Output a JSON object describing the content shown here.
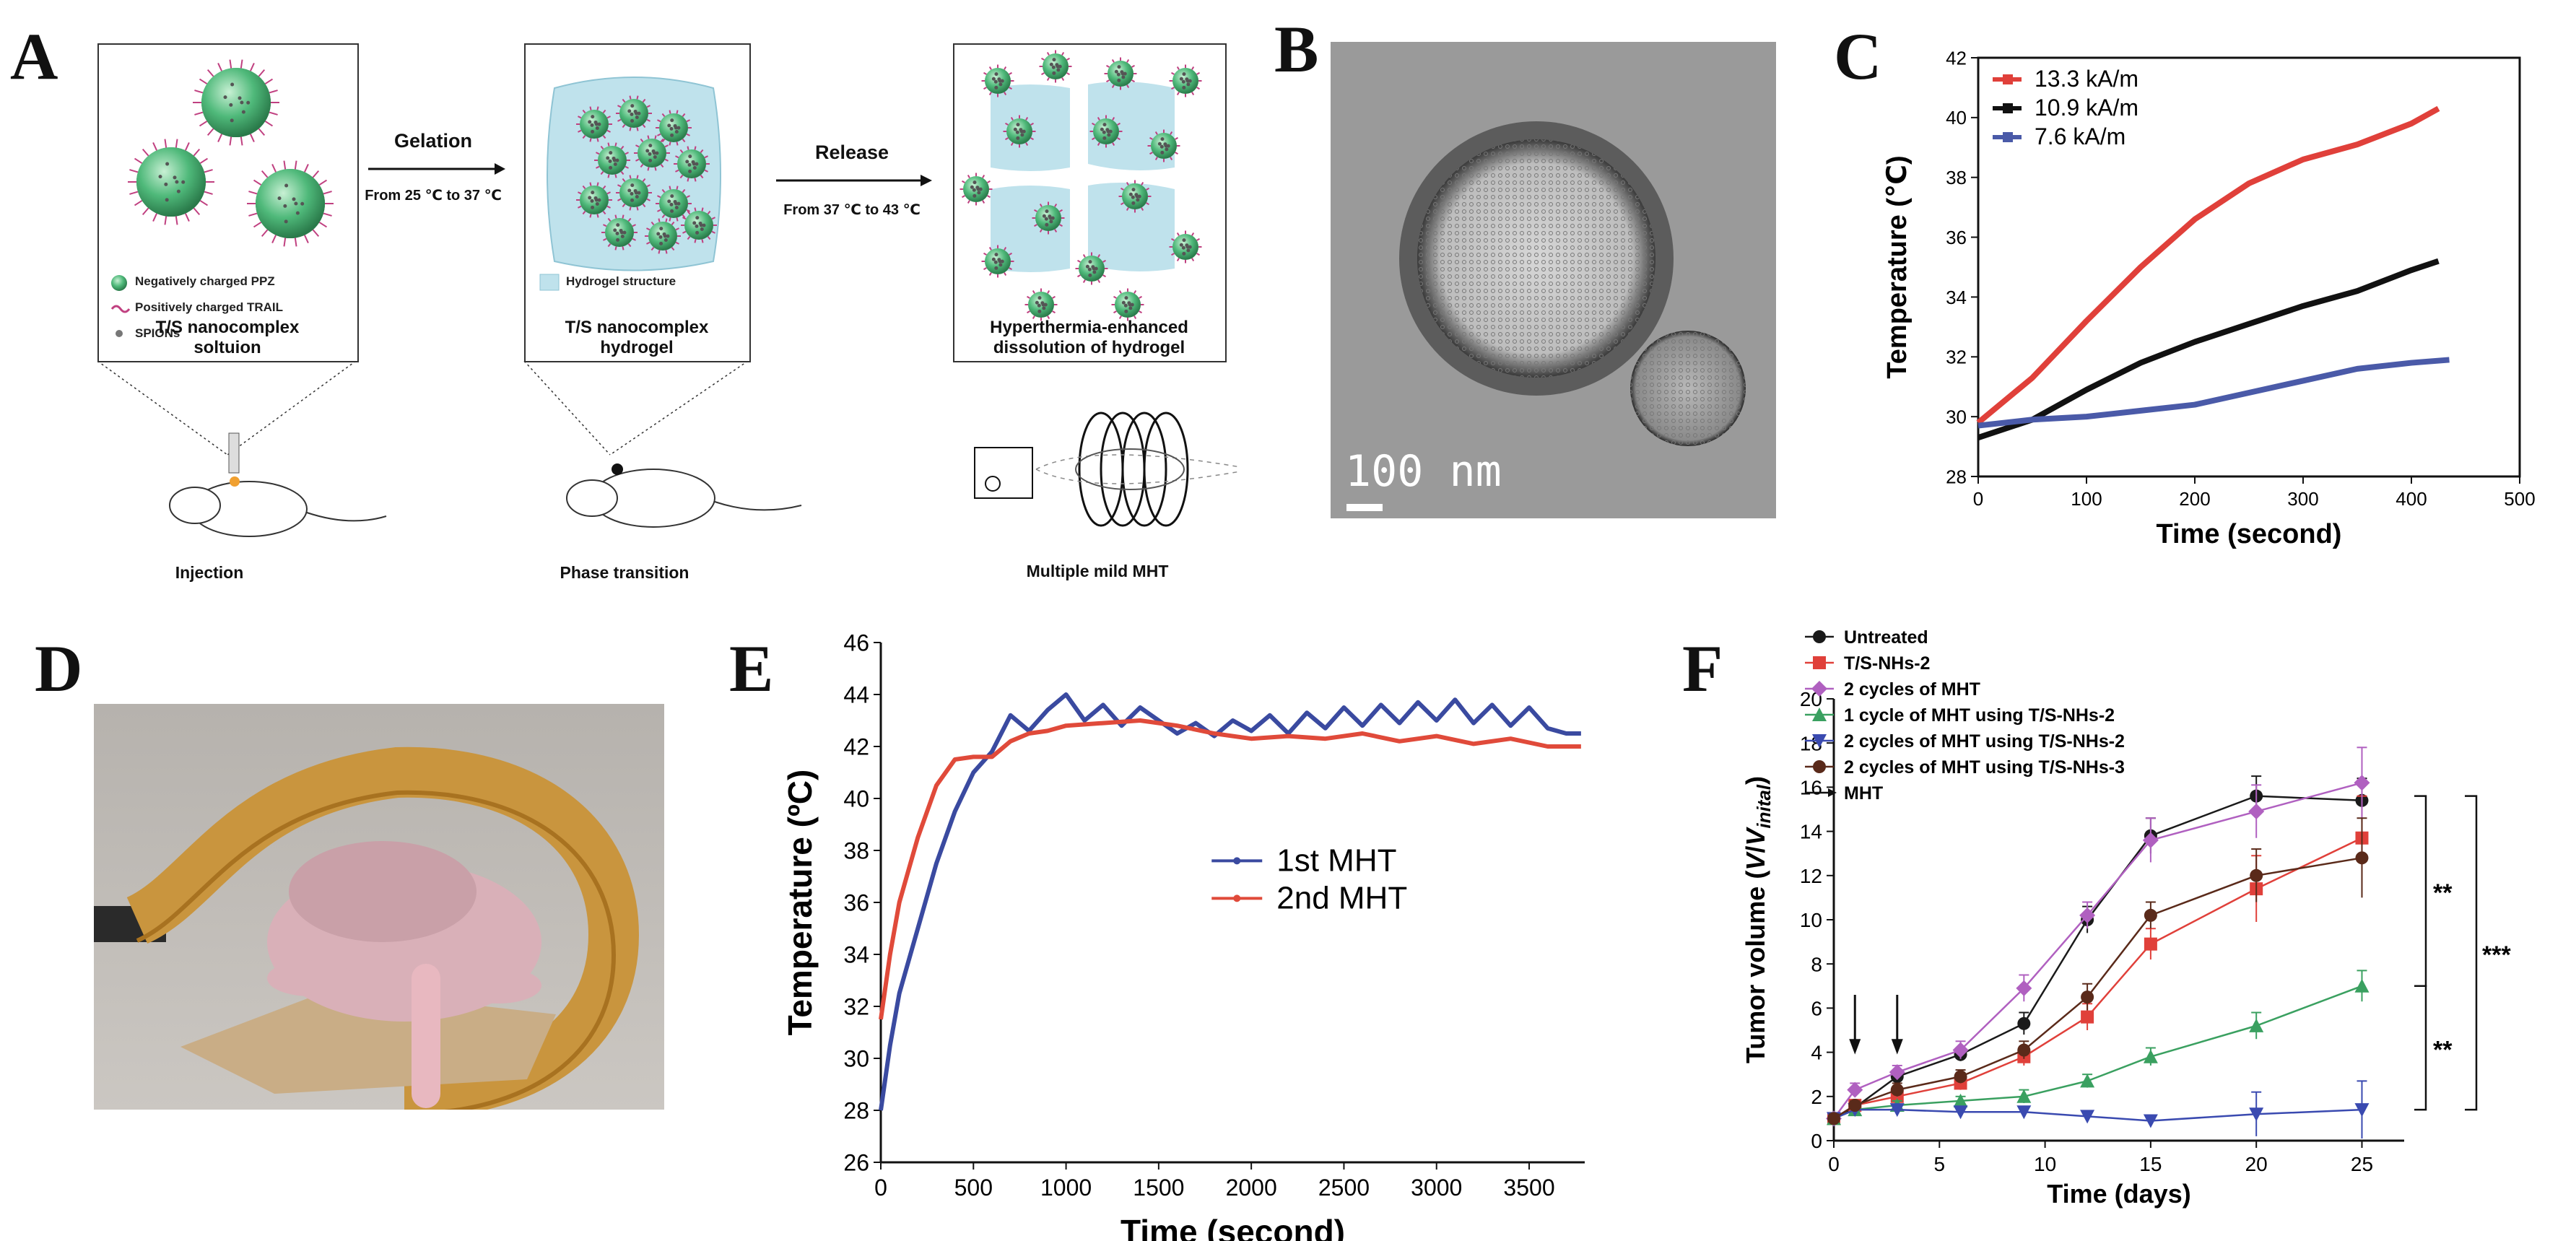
{
  "panels": {
    "A": {
      "letter": "A",
      "legend": {
        "ppz": "Negatively charged PPZ",
        "trail": "Positively charged TRAIL",
        "spions": "SPIONs"
      },
      "box1_title": "T/S nanocomplex\nsoltuion",
      "box2_note": "Hydrogel structure",
      "box2_title": "T/S nanocomplex\nhydrogel",
      "box3_title": "Hyperthermia-enhanced\ndissolution of hydrogel",
      "arrow1_label": "Gelation",
      "arrow1_sub": "From 25 ℃ to 37 ℃",
      "arrow2_label": "Release",
      "arrow2_sub": "From 37 ℃ to 43 ℃",
      "step1": "Injection",
      "step2": "Phase transition",
      "step3": "Multiple mild MHT",
      "colors": {
        "particle": "#3aa86a",
        "gel": "#b8dde8",
        "trail": "#c04080"
      }
    },
    "B": {
      "letter": "B",
      "scale_label": "100 nm"
    },
    "C": {
      "letter": "C"
    },
    "D": {
      "letter": "D"
    },
    "E": {
      "letter": "E"
    },
    "F": {
      "letter": "F",
      "sig_top": "**",
      "sig_bottom": "**",
      "sig_all": "***",
      "arrow_legend": "MHT"
    }
  },
  "chart_data": [
    {
      "id": "C",
      "type": "line",
      "title": "",
      "xlabel": "Time (second)",
      "ylabel": "Temperature (℃)",
      "xlim": [
        0,
        500
      ],
      "ylim": [
        28,
        42
      ],
      "xticks": [
        0,
        100,
        200,
        300,
        400,
        500
      ],
      "yticks": [
        28,
        30,
        32,
        34,
        36,
        38,
        40,
        42
      ],
      "legend_position": "top-left",
      "series": [
        {
          "name": "13.3 kA/m",
          "color": "#e0403a",
          "x": [
            0,
            50,
            100,
            150,
            200,
            250,
            300,
            350,
            400,
            425
          ],
          "y": [
            29.8,
            31.3,
            33.2,
            35.0,
            36.6,
            37.8,
            38.6,
            39.1,
            39.8,
            40.3
          ]
        },
        {
          "name": "10.9 kA/m",
          "color": "#111111",
          "x": [
            0,
            50,
            100,
            150,
            200,
            250,
            300,
            350,
            400,
            425
          ],
          "y": [
            29.3,
            29.9,
            30.9,
            31.8,
            32.5,
            33.1,
            33.7,
            34.2,
            34.9,
            35.2
          ]
        },
        {
          "name": "7.6 kA/m",
          "color": "#4a5aa8",
          "x": [
            0,
            50,
            100,
            150,
            200,
            250,
            300,
            350,
            400,
            435
          ],
          "y": [
            29.7,
            29.9,
            30.0,
            30.2,
            30.4,
            30.8,
            31.2,
            31.6,
            31.8,
            31.9
          ]
        }
      ]
    },
    {
      "id": "E",
      "type": "line",
      "title": "",
      "xlabel": "Time (second)",
      "ylabel": "Temperature (ºC)",
      "xlim": [
        0,
        3800
      ],
      "ylim": [
        26,
        46
      ],
      "xticks": [
        0,
        500,
        1000,
        1500,
        2000,
        2500,
        3000,
        3500
      ],
      "yticks": [
        26,
        28,
        30,
        32,
        34,
        36,
        38,
        40,
        42,
        44,
        46
      ],
      "legend_position": "center-right",
      "series": [
        {
          "name": "1st MHT",
          "color": "#3a4aa0",
          "x": [
            0,
            50,
            100,
            200,
            300,
            400,
            500,
            600,
            700,
            800,
            900,
            1000,
            1100,
            1200,
            1300,
            1400,
            1500,
            1600,
            1700,
            1800,
            1900,
            2000,
            2100,
            2200,
            2300,
            2400,
            2500,
            2600,
            2700,
            2800,
            2900,
            3000,
            3100,
            3200,
            3300,
            3400,
            3500,
            3600,
            3700,
            3780
          ],
          "y": [
            28.0,
            30.5,
            32.5,
            35.0,
            37.5,
            39.5,
            41.0,
            41.8,
            43.2,
            42.6,
            43.4,
            44.0,
            43.0,
            43.6,
            42.8,
            43.5,
            43.0,
            42.5,
            42.9,
            42.4,
            43.0,
            42.6,
            43.2,
            42.5,
            43.3,
            42.7,
            43.5,
            42.8,
            43.6,
            42.9,
            43.7,
            43.0,
            43.8,
            42.9,
            43.6,
            42.8,
            43.5,
            42.7,
            42.5,
            42.5
          ]
        },
        {
          "name": "2nd MHT",
          "color": "#e04a3a",
          "x": [
            0,
            50,
            100,
            200,
            300,
            400,
            500,
            600,
            700,
            800,
            900,
            1000,
            1200,
            1400,
            1600,
            1800,
            2000,
            2200,
            2400,
            2600,
            2800,
            3000,
            3200,
            3400,
            3600,
            3780
          ],
          "y": [
            31.5,
            34.0,
            36.0,
            38.5,
            40.5,
            41.5,
            41.6,
            41.6,
            42.2,
            42.5,
            42.6,
            42.8,
            42.9,
            43.0,
            42.8,
            42.5,
            42.3,
            42.4,
            42.3,
            42.5,
            42.2,
            42.4,
            42.1,
            42.3,
            42.0,
            42.0
          ]
        }
      ]
    },
    {
      "id": "F",
      "type": "line",
      "title": "",
      "xlabel": "Time (days)",
      "ylabel": "Tumor volume (V/V_inital)",
      "ylabel_parts": [
        "Tumor volume (",
        "V",
        "/",
        "V",
        "inital",
        ")"
      ],
      "xlim": [
        0,
        27
      ],
      "ylim": [
        0,
        20
      ],
      "xticks": [
        0,
        5,
        10,
        15,
        20,
        25
      ],
      "yticks": [
        0,
        2,
        4,
        6,
        8,
        10,
        12,
        14,
        16,
        18,
        20
      ],
      "legend_position": "top-left",
      "mht_days": [
        1,
        3
      ],
      "x": [
        0,
        1,
        3,
        6,
        9,
        12,
        15,
        20,
        25
      ],
      "series": [
        {
          "name": "Untreated",
          "color": "#1a1a1a",
          "marker": "circle",
          "values": [
            1.0,
            1.5,
            2.9,
            3.9,
            5.3,
            10.0,
            13.8,
            15.6,
            15.4
          ],
          "err": [
            0.2,
            0.2,
            0.3,
            0.3,
            0.5,
            0.6,
            0.8,
            0.9,
            1.0
          ]
        },
        {
          "name": "T/S-NHs-2",
          "color": "#e0403a",
          "marker": "square",
          "values": [
            1.0,
            1.6,
            2.0,
            2.6,
            3.8,
            5.6,
            8.9,
            11.4,
            13.7
          ],
          "err": [
            0.2,
            0.2,
            0.3,
            0.3,
            0.4,
            0.6,
            0.7,
            1.5,
            1.9
          ]
        },
        {
          "name": "2 cycles of MHT",
          "color": "#b060c0",
          "marker": "diamond",
          "values": [
            1.0,
            2.3,
            3.1,
            4.1,
            6.9,
            10.2,
            13.6,
            14.9,
            16.2
          ],
          "err": [
            0.2,
            0.3,
            0.3,
            0.4,
            0.6,
            0.6,
            1.0,
            1.2,
            1.6
          ]
        },
        {
          "name": "1 cycle of MHT using T/S-NHs-2",
          "color": "#3aa060",
          "marker": "triangle-up",
          "values": [
            1.0,
            1.4,
            1.6,
            1.8,
            2.0,
            2.7,
            3.8,
            5.2,
            7.0
          ],
          "err": [
            0.1,
            0.2,
            0.2,
            0.2,
            0.3,
            0.3,
            0.4,
            0.6,
            0.7
          ]
        },
        {
          "name": "2 cycles of MHT using T/S-NHs-2",
          "color": "#3a4ab0",
          "marker": "triangle-down",
          "values": [
            1.0,
            1.4,
            1.4,
            1.3,
            1.3,
            1.1,
            0.9,
            1.2,
            1.4
          ],
          "err": [
            0.1,
            0.2,
            0.2,
            0.2,
            0.2,
            0.2,
            0.2,
            1.0,
            1.3
          ]
        },
        {
          "name": "2 cycles of MHT using T/S-NHs-3",
          "color": "#5a2a1a",
          "marker": "circle",
          "values": [
            1.0,
            1.6,
            2.3,
            2.9,
            4.1,
            6.5,
            10.2,
            12.0,
            12.8
          ],
          "err": [
            0.2,
            0.2,
            0.3,
            0.3,
            0.4,
            0.6,
            0.6,
            1.2,
            1.8
          ]
        }
      ]
    }
  ]
}
